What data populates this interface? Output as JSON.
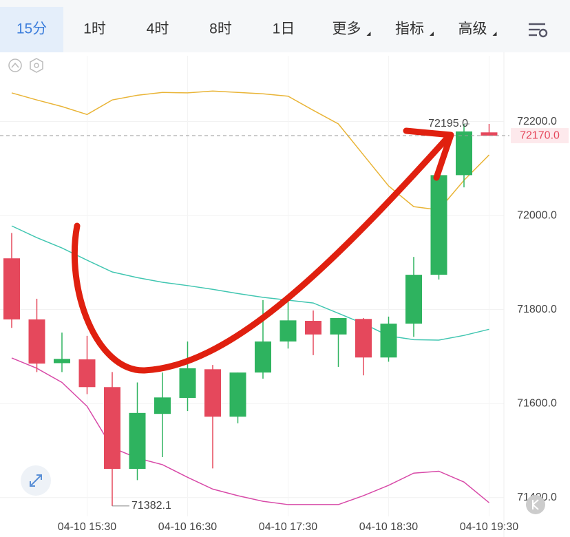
{
  "tabs": [
    "15分",
    "1时",
    "4时",
    "8时",
    "1日",
    "更多",
    "指标",
    "高级"
  ],
  "chart_data": {
    "type": "candlestick",
    "categories": [
      null,
      null,
      null,
      "04-10 15:30",
      null,
      null,
      null,
      "04-10 16:30",
      null,
      null,
      null,
      "04-10 17:30",
      null,
      null,
      null,
      "04-10 18:30",
      null,
      null,
      null,
      "04-10 19:30"
    ],
    "open": [
      71909,
      71779,
      71686,
      71694,
      71635,
      71461,
      71578,
      71612,
      71673,
      71572,
      71666,
      71732,
      71776,
      71747,
      71780,
      71698,
      71770,
      71874,
      72086,
      72177
    ],
    "high": [
      71963,
      71823,
      71751,
      71744,
      71667,
      71645,
      71666,
      71732,
      71682,
      71666,
      71820,
      71826,
      71798,
      71782,
      71782,
      71785,
      71912,
      72086,
      72195,
      72195
    ],
    "low": [
      71761,
      71667,
      71667,
      71620,
      71382.1,
      71437,
      71486,
      71584,
      71462,
      71558,
      71653,
      71717,
      71703,
      71678,
      71660,
      71689,
      71742,
      71864,
      72060,
      72170
    ],
    "close": [
      71779,
      71685,
      71695,
      71635,
      71461,
      71580,
      71613,
      71675,
      71572,
      71666,
      71732,
      71777,
      71747,
      71782,
      71698,
      71770,
      71874,
      72086,
      72179,
      72170
    ],
    "up_color": "#2eb35f",
    "down_color": "#e5485c",
    "lines": [
      {
        "color": "#e9b436",
        "values": [
          72261,
          72246,
          72232,
          72215,
          72246,
          72256,
          72262,
          72261,
          72265,
          72262,
          72259,
          72254,
          72224,
          72195,
          72129,
          72063,
          72019,
          72012,
          72075,
          72129
        ]
      },
      {
        "color": "#41c6b1",
        "values": [
          71978,
          71953,
          71931,
          71905,
          71880,
          71868,
          71858,
          71851,
          71843,
          71834,
          71826,
          71820,
          71814,
          71792,
          71770,
          71744,
          71736,
          71735,
          71745,
          71758
        ]
      },
      {
        "color": "#d84aa8",
        "values": [
          71697,
          71675,
          71645,
          71594,
          71506,
          71484,
          71470,
          71443,
          71418,
          71404,
          71392,
          71385,
          71385,
          71385,
          71404,
          71426,
          71452,
          71456,
          71433,
          71389
        ]
      }
    ],
    "ylim": [
      71360,
      72340
    ],
    "yticks": [
      {
        "value": 71400,
        "label": "71400.0"
      },
      {
        "value": 71600,
        "label": "71600.0"
      },
      {
        "value": 71800,
        "label": "71800.0"
      },
      {
        "value": 72000,
        "label": "72000.0"
      },
      {
        "value": 72200,
        "label": "72200.0"
      }
    ],
    "grid": true,
    "max_label": {
      "value": 72195,
      "label": "72195.0"
    },
    "min_label": {
      "value": 71382.1,
      "label": "71382.1"
    },
    "last_price": {
      "value": 72170,
      "label": "72170.0"
    }
  }
}
